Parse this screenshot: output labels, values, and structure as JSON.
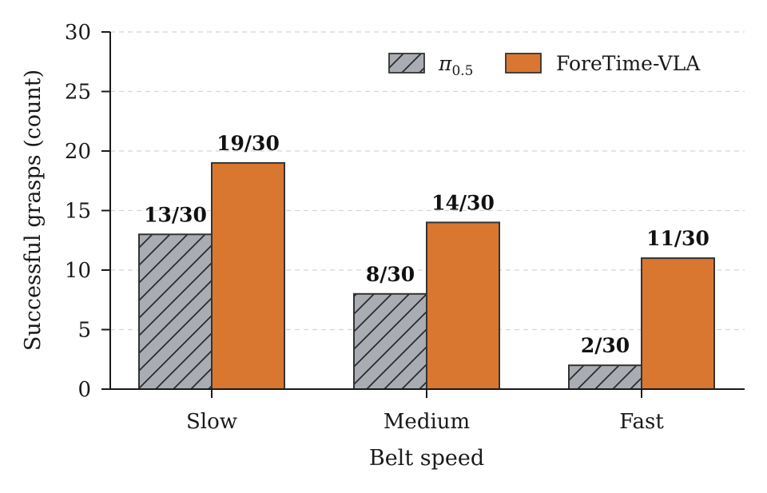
{
  "chart_data": {
    "type": "bar",
    "categories": [
      "Slow",
      "Medium",
      "Fast"
    ],
    "series": [
      {
        "name": "π",
        "name_sub": "0.5",
        "values": [
          13,
          8,
          2
        ],
        "labels": [
          "13/30",
          "8/30",
          "2/30"
        ],
        "color": "#a9adb3",
        "hatch": true
      },
      {
        "name": "ForeTime-VLA",
        "values": [
          19,
          14,
          11
        ],
        "labels": [
          "19/30",
          "14/30",
          "11/30"
        ],
        "color": "#d97730",
        "hatch": false
      }
    ],
    "xlabel": "Belt speed",
    "ylabel": "Successful grasps (count)",
    "ylim": [
      0,
      30
    ],
    "yticks": [
      "0",
      "5",
      "10",
      "15",
      "20",
      "25",
      "30"
    ],
    "grid": "horizontal-dashed",
    "legend": "top-right"
  }
}
